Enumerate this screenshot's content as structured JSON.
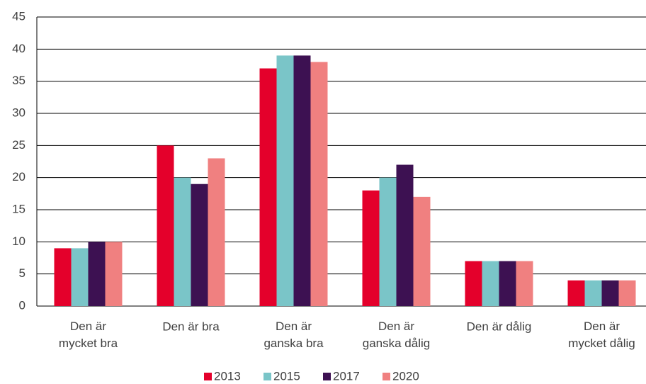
{
  "chart_data": {
    "type": "bar",
    "categories": [
      "Den är\nmycket bra",
      "Den är bra",
      "Den är\nganska bra",
      "Den är\nganska dålig",
      "Den är dålig",
      "Den är\nmycket dålig"
    ],
    "series": [
      {
        "name": "2013",
        "color": "#e4002b",
        "values": [
          9,
          25,
          37,
          18,
          7,
          4
        ]
      },
      {
        "name": "2015",
        "color": "#7ac5c8",
        "values": [
          9,
          20,
          39,
          20,
          7,
          4
        ]
      },
      {
        "name": "2017",
        "color": "#3d1152",
        "values": [
          10,
          19,
          39,
          22,
          7,
          4
        ]
      },
      {
        "name": "2020",
        "color": "#f08080",
        "values": [
          10,
          23,
          38,
          17,
          7,
          4
        ]
      }
    ],
    "ylim": [
      0,
      45
    ],
    "yticks": [
      0,
      5,
      10,
      15,
      20,
      25,
      30,
      35,
      40,
      45
    ],
    "grid": true,
    "legend": "bottom"
  }
}
